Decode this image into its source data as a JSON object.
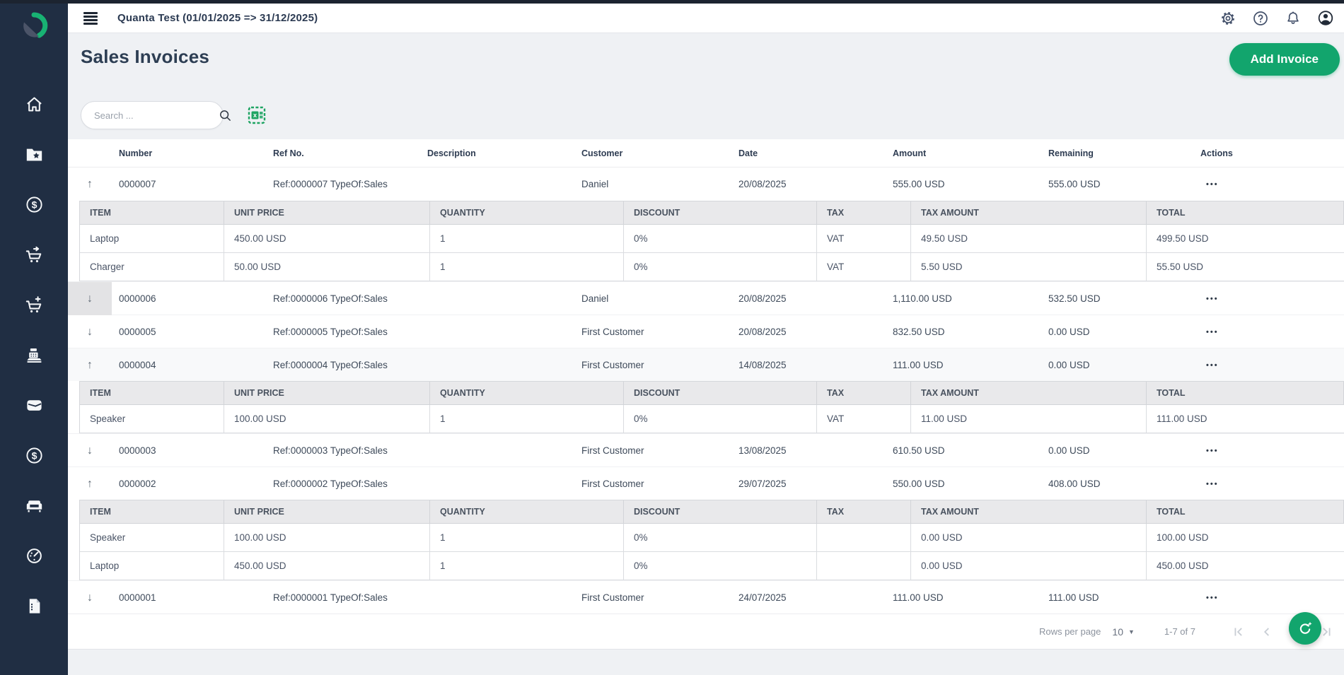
{
  "topbar": {
    "title": "Quanta Test (01/01/2025 => 31/12/2025)",
    "icons": [
      "settings",
      "help",
      "notifications",
      "account"
    ]
  },
  "sidebar": {
    "icons": [
      "home",
      "folder-star",
      "dollar-circle",
      "cart-arrow",
      "cart-plus",
      "cash-register",
      "wallet",
      "dollar-circle",
      "armchair",
      "timer",
      "document"
    ]
  },
  "page": {
    "title": "Sales Invoices",
    "add_invoice_label": "Add Invoice",
    "search_placeholder": "Search ..."
  },
  "table": {
    "columns": [
      "Number",
      "Ref No.",
      "Description",
      "Customer",
      "Date",
      "Amount",
      "Remaining",
      "Actions"
    ],
    "item_columns": [
      "ITEM",
      "UNIT PRICE",
      "QUANTITY",
      "DISCOUNT",
      "TAX",
      "TAX AMOUNT",
      "TOTAL"
    ],
    "actions_glyph": "•••",
    "collapse_glyph": "↑",
    "expand_glyph": "↓",
    "invoices": [
      {
        "number": "0000007",
        "ref": "Ref:0000007 TypeOf:Sales",
        "description": "",
        "customer": "Daniel",
        "date": "20/08/2025",
        "amount": "555.00 USD",
        "remaining": "555.00 USD",
        "expanded": true,
        "focused": false,
        "highlight": false,
        "items": [
          [
            "Laptop",
            "450.00 USD",
            "1",
            "0%",
            "VAT",
            "49.50 USD",
            "499.50 USD"
          ],
          [
            "Charger",
            "50.00 USD",
            "1",
            "0%",
            "VAT",
            "5.50 USD",
            "55.50 USD"
          ]
        ]
      },
      {
        "number": "0000006",
        "ref": "Ref:0000006 TypeOf:Sales",
        "description": "",
        "customer": "Daniel",
        "date": "20/08/2025",
        "amount": "1,110.00 USD",
        "remaining": "532.50 USD",
        "expanded": false,
        "focused": true,
        "highlight": false,
        "items": []
      },
      {
        "number": "0000005",
        "ref": "Ref:0000005 TypeOf:Sales",
        "description": "",
        "customer": "First Customer",
        "date": "20/08/2025",
        "amount": "832.50 USD",
        "remaining": "0.00 USD",
        "expanded": false,
        "focused": false,
        "highlight": false,
        "items": []
      },
      {
        "number": "0000004",
        "ref": "Ref:0000004 TypeOf:Sales",
        "description": "",
        "customer": "First Customer",
        "date": "14/08/2025",
        "amount": "111.00 USD",
        "remaining": "0.00 USD",
        "expanded": true,
        "focused": false,
        "highlight": true,
        "items": [
          [
            "Speaker",
            "100.00 USD",
            "1",
            "0%",
            "VAT",
            "11.00 USD",
            "111.00 USD"
          ]
        ]
      },
      {
        "number": "0000003",
        "ref": "Ref:0000003 TypeOf:Sales",
        "description": "",
        "customer": "First Customer",
        "date": "13/08/2025",
        "amount": "610.50 USD",
        "remaining": "0.00 USD",
        "expanded": false,
        "focused": false,
        "highlight": false,
        "items": []
      },
      {
        "number": "0000002",
        "ref": "Ref:0000002 TypeOf:Sales",
        "description": "",
        "customer": "First Customer",
        "date": "29/07/2025",
        "amount": "550.00 USD",
        "remaining": "408.00 USD",
        "expanded": true,
        "focused": false,
        "highlight": false,
        "items": [
          [
            "Speaker",
            "100.00 USD",
            "1",
            "0%",
            "",
            "0.00 USD",
            "100.00 USD"
          ],
          [
            "Laptop",
            "450.00 USD",
            "1",
            "0%",
            "",
            "0.00 USD",
            "450.00 USD"
          ]
        ]
      },
      {
        "number": "0000001",
        "ref": "Ref:0000001 TypeOf:Sales",
        "description": "",
        "customer": "First Customer",
        "date": "24/07/2025",
        "amount": "111.00 USD",
        "remaining": "111.00 USD",
        "expanded": false,
        "focused": false,
        "highlight": false,
        "items": []
      }
    ]
  },
  "footer": {
    "rows_per_page_label": "Rows per page",
    "rows_per_page_value": "10",
    "range_label": "1-7 of 7"
  },
  "colors": {
    "accent_green": "#12a56d",
    "sidebar_bg": "#202e43",
    "excel_green": "#1fa463",
    "page_bg": "#eff1f4"
  }
}
